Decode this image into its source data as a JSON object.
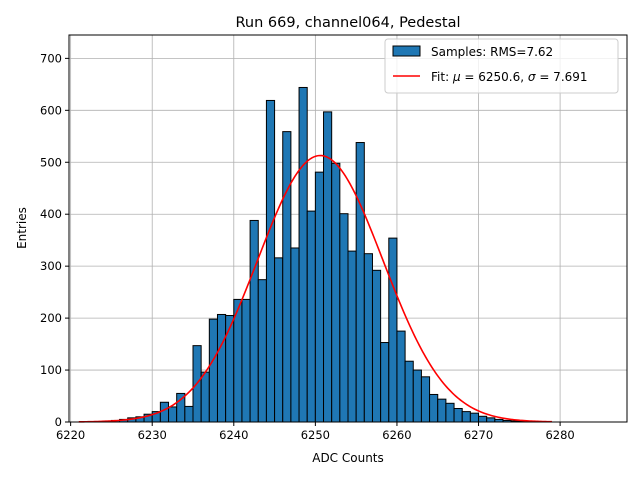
{
  "chart_data": {
    "type": "bar",
    "title": "Run 669, channel064, Pedestal",
    "xlabel": "ADC Counts",
    "ylabel": "Entries",
    "xlim": [
      6219.8,
      6288.2
    ],
    "ylim": [
      0,
      745
    ],
    "grid": true,
    "legend_position": "upper-right",
    "xticks": [
      6220,
      6230,
      6240,
      6250,
      6260,
      6270,
      6280
    ],
    "yticks": [
      0,
      100,
      200,
      300,
      400,
      500,
      600,
      700
    ],
    "colors": {
      "bars": "#1f77b4",
      "bar_edge": "#000000",
      "fit": "#ff0000",
      "grid": "#b0b0b0"
    },
    "legend": {
      "samples_label": "Samples: RMS=7.62",
      "fit_prefix": "Fit: ",
      "fit_mu_symbol": "μ",
      "fit_mu_value": " = 6250.6, ",
      "fit_sigma_symbol": "σ",
      "fit_sigma_value": " = 7.691"
    },
    "histogram": {
      "name": "Samples",
      "bin_edges_start": 6221,
      "bin_width": 1,
      "counts": [
        0,
        0,
        1,
        2,
        3,
        5,
        8,
        10,
        15,
        20,
        38,
        29,
        55,
        30,
        147,
        96,
        198,
        207,
        205,
        236,
        236,
        388,
        274,
        619,
        316,
        559,
        335,
        644,
        406,
        481,
        597,
        498,
        401,
        329,
        538,
        324,
        292,
        153,
        354,
        175,
        117,
        100,
        87,
        53,
        44,
        36,
        26,
        20,
        17,
        11,
        8,
        5,
        3,
        2,
        1,
        1,
        0,
        0,
        0,
        0,
        0,
        0,
        0,
        0
      ]
    },
    "fit": {
      "name": "Fit",
      "mu": 6250.6,
      "sigma": 7.691,
      "amplitude": 513,
      "x_range": [
        6221,
        6279
      ]
    }
  }
}
